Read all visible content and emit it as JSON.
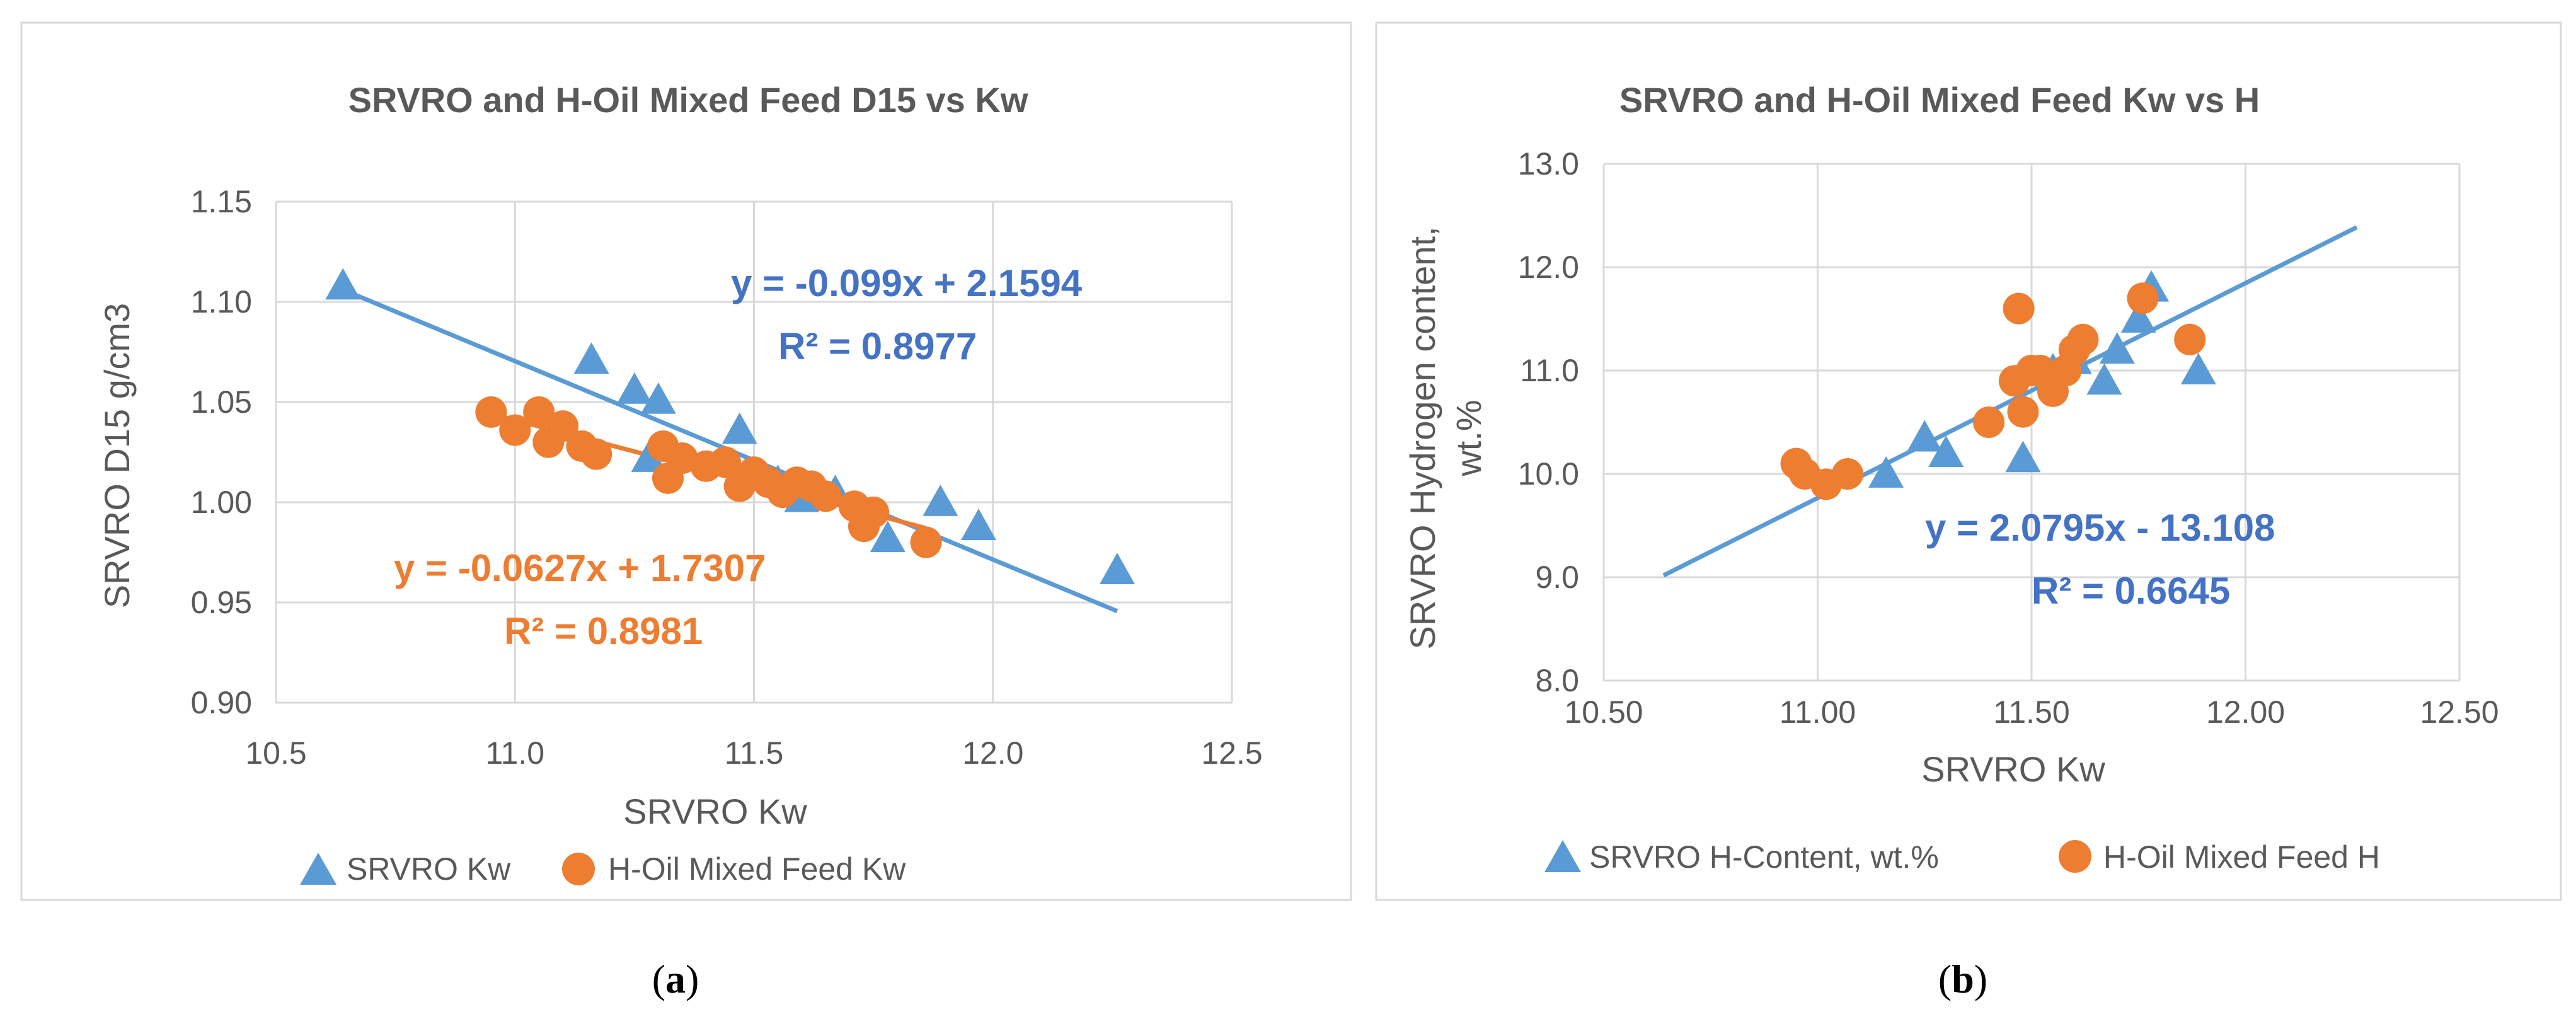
{
  "colors": {
    "blue": "#5B9BD5",
    "orange": "#ED7D31",
    "grid": "#D9D9D9",
    "text": "#595959",
    "border": "#D9D9D9"
  },
  "chart_data": [
    {
      "type": "scatter",
      "title": "SRVRO and H-Oil Mixed Feed D15 vs Kw",
      "xlabel": "SRVRO Kw",
      "ylabel": "SRVRO D15 g/cm3",
      "xlim": [
        10.5,
        12.5
      ],
      "ylim": [
        0.9,
        1.15
      ],
      "xticks": [
        "10.5",
        "11.0",
        "11.5",
        "12.0",
        "12.5"
      ],
      "yticks": [
        "0.90",
        "0.95",
        "1.00",
        "1.05",
        "1.10",
        "1.15"
      ],
      "grid": true,
      "legend_position": "bottom",
      "caption_open": "(",
      "caption_letter": "a",
      "caption_close": ")",
      "series": [
        {
          "name": "SRVRO Kw",
          "marker": "triangle",
          "color": "#5B9BD5",
          "x": [
            10.64,
            11.16,
            11.25,
            11.3,
            11.28,
            11.47,
            11.55,
            11.6,
            11.67,
            11.78,
            11.89,
            11.97,
            12.26
          ],
          "y": [
            1.108,
            1.071,
            1.056,
            1.051,
            1.022,
            1.036,
            1.01,
            1.002,
            1.005,
            0.982,
            1.0,
            0.988,
            0.966
          ],
          "trendline": {
            "equation": "y = -0.099x + 2.1594",
            "r2": "R² = 0.8977",
            "slope": -0.099,
            "intercept": 2.1594,
            "x_range": [
              10.64,
              12.26
            ]
          }
        },
        {
          "name": "H-Oil Mixed Feed Kw",
          "marker": "circle",
          "color": "#ED7D31",
          "x": [
            10.95,
            11.0,
            11.05,
            11.07,
            11.1,
            11.14,
            11.17,
            11.31,
            11.32,
            11.35,
            11.4,
            11.44,
            11.47,
            11.5,
            11.53,
            11.56,
            11.59,
            11.62,
            11.65,
            11.71,
            11.73,
            11.75,
            11.86
          ],
          "y": [
            1.045,
            1.036,
            1.045,
            1.03,
            1.038,
            1.028,
            1.024,
            1.028,
            1.012,
            1.022,
            1.018,
            1.02,
            1.008,
            1.015,
            1.01,
            1.005,
            1.01,
            1.008,
            1.003,
            0.998,
            0.988,
            0.995,
            0.98
          ],
          "trendline": {
            "equation": "y = -0.0627x + 1.7307",
            "r2": "R² = 0.8981",
            "slope": -0.0627,
            "intercept": 1.7307,
            "x_range": [
              10.95,
              11.86
            ]
          }
        }
      ]
    },
    {
      "type": "scatter",
      "title": "SRVRO and H-Oil Mixed Feed Kw vs H",
      "xlabel": "SRVRO Kw",
      "ylabel": "SRVRO Hydrogen content, wt.%",
      "ylabel_line1": "SRVRO Hydrogen content,",
      "ylabel_line2": "wt.%",
      "xlim": [
        10.5,
        12.5
      ],
      "ylim": [
        8.0,
        13.0
      ],
      "xticks": [
        "10.50",
        "11.00",
        "11.50",
        "12.00",
        "12.50"
      ],
      "yticks": [
        "8.0",
        "9.0",
        "10.0",
        "11.0",
        "12.0",
        "13.0"
      ],
      "grid": true,
      "legend_position": "bottom",
      "caption_open": "(",
      "caption_letter": "b",
      "caption_close": ")",
      "series": [
        {
          "name": "SRVRO H-Content, wt.%",
          "marker": "triangle",
          "color": "#5B9BD5",
          "x": [
            11.16,
            11.25,
            11.3,
            11.48,
            11.55,
            11.6,
            11.67,
            11.7,
            11.75,
            11.78,
            11.89
          ],
          "y": [
            10.0,
            10.35,
            10.2,
            10.15,
            11.0,
            11.1,
            10.9,
            11.2,
            11.5,
            11.8,
            11.0
          ],
          "trendline": {
            "equation": "y = 2.0795x - 13.108",
            "r2": "R² = 0.6645",
            "slope": 2.0795,
            "intercept": -13.108,
            "x_range": [
              10.64,
              12.26
            ]
          }
        },
        {
          "name": "H-Oil Mixed Feed H",
          "marker": "circle",
          "color": "#ED7D31",
          "x": [
            10.95,
            10.97,
            11.02,
            11.07,
            11.4,
            11.46,
            11.47,
            11.48,
            11.5,
            11.52,
            11.55,
            11.58,
            11.6,
            11.62,
            11.76,
            11.87
          ],
          "y": [
            10.1,
            10.0,
            9.9,
            10.0,
            10.5,
            10.9,
            11.6,
            10.6,
            11.0,
            11.0,
            10.8,
            11.0,
            11.2,
            11.3,
            11.7,
            11.3
          ],
          "trendline": null
        }
      ]
    }
  ]
}
